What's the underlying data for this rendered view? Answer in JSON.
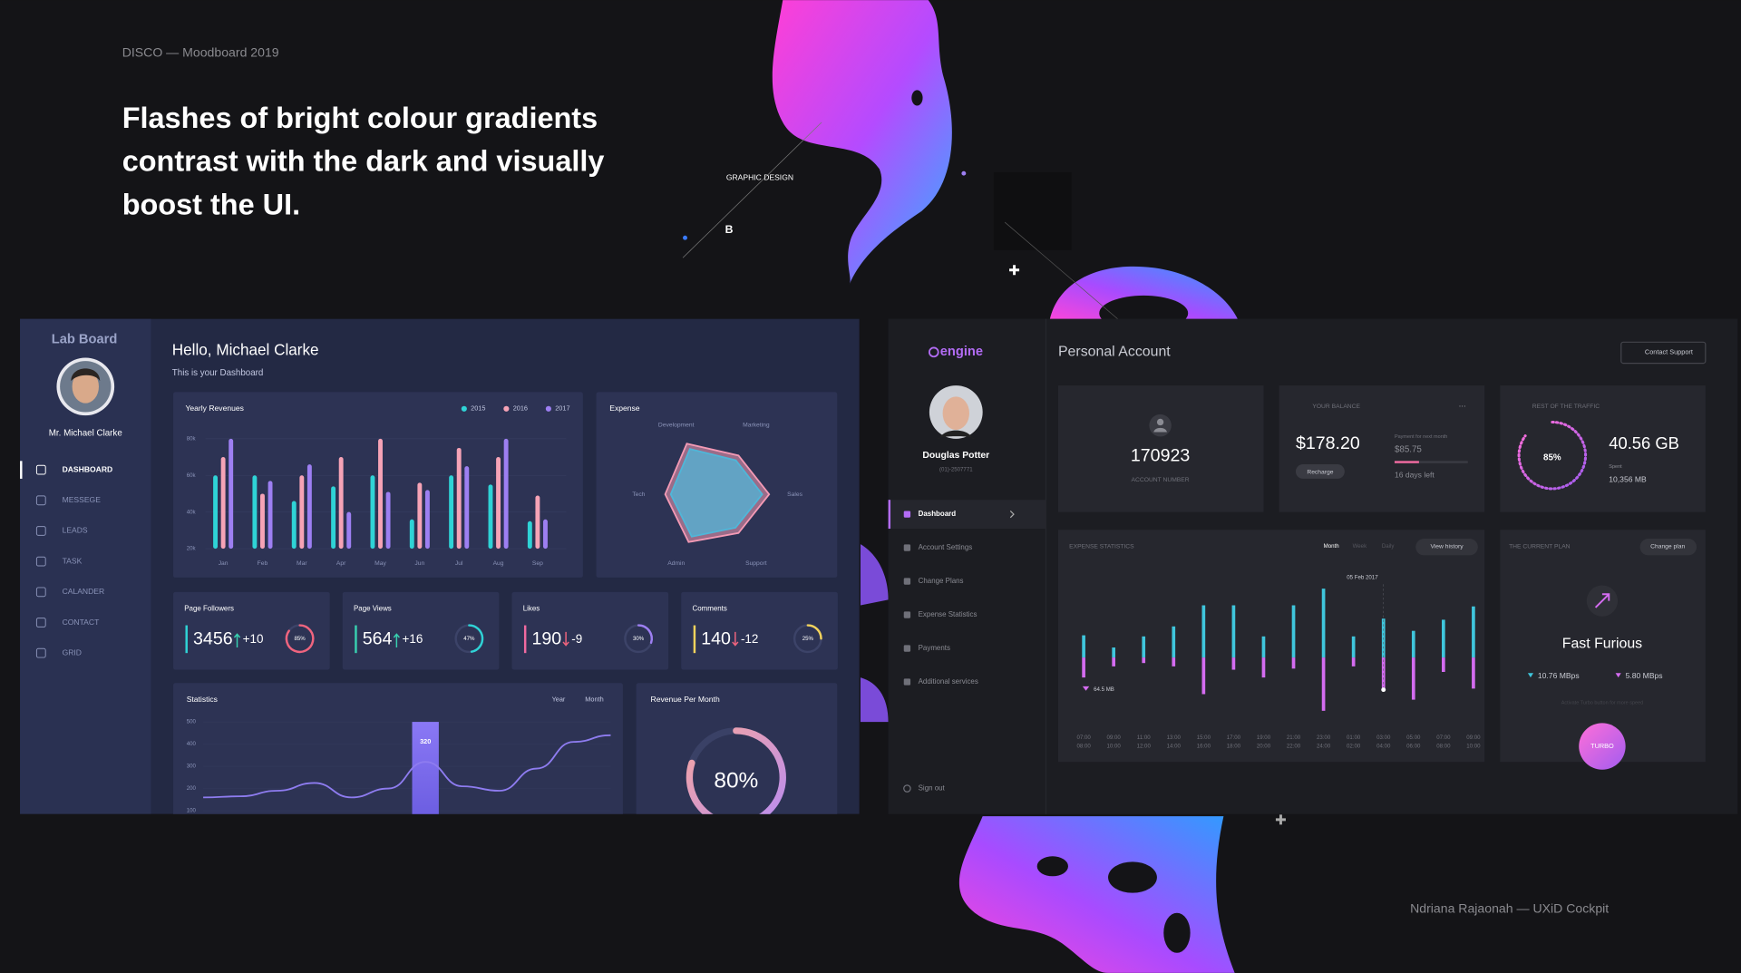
{
  "header": {
    "caption": "DISCO — Moodboard 2019",
    "headline": [
      "Flashes of bright colour gradients",
      "contrast with the dark and visually",
      "boost the UI."
    ],
    "tags": [
      "GRAPHIC DESIGN",
      "B"
    ]
  },
  "footer": "Ndriana Rajaonah — UXiD Cockpit",
  "lab_board": {
    "brand": "Lab Board",
    "user": "Mr. Michael Clarke",
    "nav": [
      "DASHBOARD",
      "MESSEGE",
      "LEADS",
      "TASK",
      "CALANDER",
      "CONTACT",
      "GRID"
    ],
    "greeting": "Hello, Michael Clarke",
    "subtitle": "This is your Dashboard",
    "revenues": {
      "type": "bar",
      "title": "Yearly Revenues",
      "categories": [
        "Jan",
        "Feb",
        "Mar",
        "Apr",
        "May",
        "Jun",
        "Jul",
        "Aug",
        "Sep"
      ],
      "series": [
        {
          "name": "2015",
          "color": "#2fd3d6",
          "values": [
            60000,
            60000,
            46000,
            54000,
            60000,
            36000,
            60000,
            55000,
            35000
          ]
        },
        {
          "name": "2016",
          "color": "#f6a3b6",
          "values": [
            70000,
            50000,
            60000,
            70000,
            80000,
            56000,
            75000,
            70000,
            49000
          ]
        },
        {
          "name": "2017",
          "color": "#9d7ff2",
          "values": [
            80000,
            57000,
            66000,
            40000,
            51000,
            52000,
            65000,
            80000,
            36000
          ]
        }
      ],
      "ylim": [
        20000,
        85000
      ],
      "yticks": [
        {
          "value": 20000,
          "label": "20k"
        },
        {
          "value": 40000,
          "label": "40k"
        },
        {
          "value": 60000,
          "label": "60k"
        },
        {
          "value": 80000,
          "label": "80k"
        }
      ]
    },
    "expense": {
      "type": "radar",
      "title": "Expense",
      "categories": [
        "Development",
        "Marketing",
        "Sales",
        "Support",
        "Admin",
        "Tech"
      ],
      "series": [
        {
          "color": "#f49ab5",
          "values": [
            85,
            65,
            77,
            65,
            80,
            74
          ]
        },
        {
          "color": "#4fb6d8",
          "values": [
            76,
            57,
            67,
            56,
            71,
            66
          ]
        }
      ],
      "rlim": [
        0,
        100
      ]
    },
    "kpis": [
      {
        "title": "Page Followers",
        "value": "3456",
        "change": "+10",
        "percent": 85,
        "percent_label": "85%",
        "color": "#2fd3d6",
        "ring_color": "#f0647e"
      },
      {
        "title": "Page Views",
        "value": "564",
        "change": "+16",
        "percent": 47,
        "percent_label": "47%",
        "color": "#38d0b0",
        "ring_color": "#2fd3d6"
      },
      {
        "title": "Likes",
        "value": "190",
        "change": "-9",
        "percent": 30,
        "percent_label": "30%",
        "color": "#f06aa0",
        "ring_color": "#9d7ff2"
      },
      {
        "title": "Comments",
        "value": "140",
        "change": "-12",
        "percent": 25,
        "percent_label": "25%",
        "color": "#f3d35c",
        "ring_color": "#f3d35c"
      }
    ],
    "statistics": {
      "type": "line",
      "title": "Statistics",
      "controls": [
        "Year",
        "Month"
      ],
      "categories": [
        null,
        null,
        null,
        null,
        null,
        null,
        null,
        null,
        null,
        null,
        null,
        null
      ],
      "values": [
        160,
        165,
        190,
        225,
        160,
        200,
        320,
        210,
        190,
        290,
        410,
        440
      ],
      "value_labels": [
        null,
        null,
        null,
        null,
        null,
        null,
        "320",
        null,
        null,
        null,
        null,
        null
      ],
      "color": "#8e7cf0",
      "ylim": [
        100,
        500
      ],
      "yticks": [
        500,
        400,
        300,
        200,
        100
      ]
    },
    "revenue_month": {
      "type": "gauge",
      "title": "Revenue Per Month",
      "value": 80,
      "value_label": "80%"
    }
  },
  "engine": {
    "brand": "engine",
    "user": "Douglas Potter",
    "user_id": "(01)-2507771",
    "nav": [
      "Dashboard",
      "Account Settings",
      "Change Plans",
      "Expense Statistics",
      "Payments",
      "Additional services"
    ],
    "sign_out": "Sign out",
    "title": "Personal Account",
    "support": "Contact Support",
    "account": {
      "number": "170923",
      "label": "ACCOUNT NUMBER"
    },
    "balance": {
      "title": "YOUR BALANCE",
      "menu": "...",
      "amount": "$178.20",
      "action": "Recharge",
      "next_label": "Payment for next month",
      "next_amount": "$85.75",
      "days_left": "16 days left"
    },
    "traffic": {
      "type": "gauge",
      "title": "REST OF THE TRAFFIC",
      "value": 85,
      "value_label": "85%",
      "remaining": "40.56 GB",
      "spent_label": "Spent",
      "spent": "10,356 MB"
    },
    "expense_statistics": {
      "type": "bar",
      "title": "EXPENSE STATISTICS",
      "tabs": [
        "Month",
        "Week",
        "Daily"
      ],
      "action": "View history",
      "categories": [
        [
          "07:00",
          "08:00"
        ],
        [
          "09:00",
          "10:00"
        ],
        [
          "11:00",
          "12:00"
        ],
        [
          "13:00",
          "14:00"
        ],
        [
          "15:00",
          "16:00"
        ],
        [
          "17:00",
          "18:00"
        ],
        [
          "19:00",
          "20:00"
        ],
        [
          "21:00",
          "22:00"
        ],
        [
          "23:00",
          "24:00"
        ],
        [
          "01:00",
          "02:00"
        ],
        [
          "03:00",
          "04:00"
        ],
        [
          "05:00",
          "06:00"
        ],
        [
          "07:00",
          "08:00"
        ],
        [
          "09:00",
          "10:00"
        ]
      ],
      "series": [
        {
          "color": "#3fc6dc",
          "values": [
            20,
            9,
            19,
            28,
            47,
            47,
            19,
            47,
            62,
            19,
            35,
            24,
            34,
            46
          ]
        },
        {
          "color": "#d46cf0",
          "values": [
            -18,
            -8,
            -5,
            -8,
            -33,
            -11,
            -18,
            -10,
            -48,
            -8,
            -28,
            -38,
            -13,
            -28
          ]
        }
      ],
      "ylim": [
        -60,
        70
      ],
      "annotations": [
        "05 Feb 2017",
        "64.5 MB"
      ]
    },
    "plan": {
      "title": "THE CURRENT PLAN",
      "action": "Change plan",
      "name": "Fast Furious",
      "download": "10.76 MBps",
      "upload": "5.80 MBps",
      "note": "Activate Turbo button for more speed",
      "button": "TURBO"
    }
  }
}
